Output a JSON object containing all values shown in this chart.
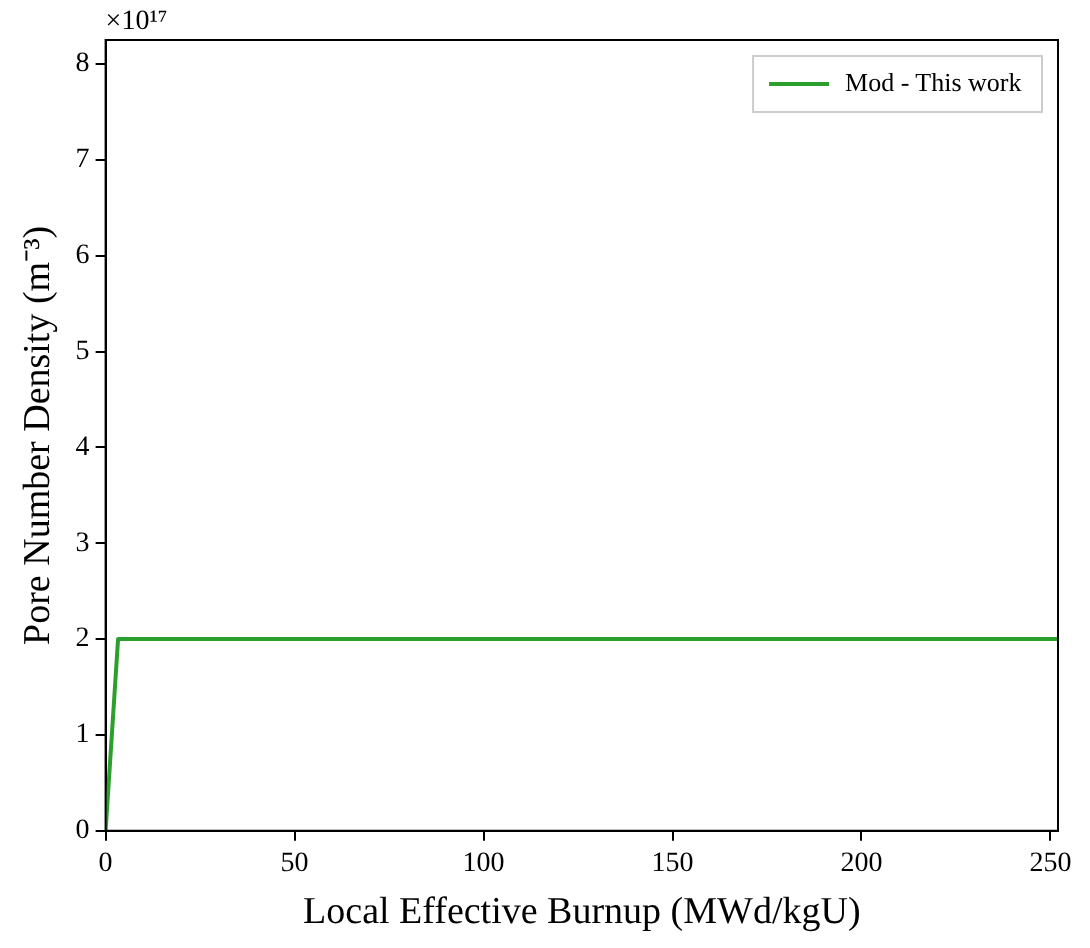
{
  "chart_data": {
    "type": "line",
    "xlabel": "Local Effective Burnup (MWd/kgU)",
    "ylabel": "Pore Number Density (m⁻³)",
    "annotations": [
      "×10¹⁷"
    ],
    "series": [
      {
        "name": "Mod - This work",
        "color": "#2ca02c",
        "x": [
          0,
          3.3,
          252
        ],
        "values": [
          0,
          2,
          2
        ]
      }
    ],
    "xlim": [
      0,
      252
    ],
    "xticks": [
      0,
      50,
      100,
      150,
      200,
      250
    ],
    "ylim": [
      0,
      8.25
    ],
    "yticks": [
      0,
      1,
      2,
      3,
      4,
      5,
      6,
      7,
      8
    ],
    "grid": false,
    "legend": "top right",
    "marker": "none",
    "line_style": "solid"
  }
}
